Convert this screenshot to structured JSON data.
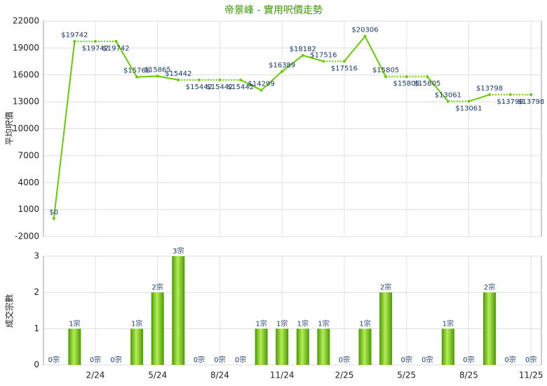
{
  "chart_data": [
    {
      "type": "line",
      "title": "帝景峰 - 實用呎價走勢",
      "y_label": "平均呎價",
      "color": "#66cc00",
      "values": [
        0,
        19742,
        19742,
        19742,
        15768,
        15865,
        15442,
        15442,
        15442,
        15442,
        14299,
        16389,
        18182,
        17516,
        17516,
        20306,
        15805,
        15805,
        15805,
        13061,
        13061,
        13798,
        13798,
        13798
      ],
      "value_labels": [
        "$0",
        "$19742",
        "$19742",
        "$19742",
        "$15768",
        "$15865",
        "$15442",
        "$15442",
        "$15442",
        "$15442",
        "$14299",
        "$16389",
        "$18182",
        "$17516",
        "$17516",
        "$20306",
        "$15805",
        "$15805",
        "$15805",
        "$13061",
        "$13061",
        "$13798",
        "$13798",
        "$13798"
      ],
      "ylim": [
        -2000,
        22000
      ],
      "yticks": [
        -2000,
        1000,
        4000,
        7000,
        10000,
        13000,
        16000,
        19000,
        22000
      ],
      "grid": true
    },
    {
      "type": "bar",
      "y_label": "成交宗數",
      "color": "#66bb11",
      "categories": [
        null,
        null,
        "2/24",
        null,
        null,
        "5/24",
        null,
        null,
        "8/24",
        null,
        null,
        "11/24",
        null,
        null,
        "2/25",
        null,
        null,
        "5/25",
        null,
        null,
        "8/25",
        null,
        null,
        "11/25"
      ],
      "values": [
        0,
        1,
        0,
        0,
        1,
        2,
        3,
        0,
        0,
        0,
        1,
        1,
        1,
        1,
        0,
        1,
        2,
        0,
        0,
        1,
        0,
        2,
        0,
        0
      ],
      "value_labels": [
        "0宗",
        "1宗",
        "0宗",
        "0宗",
        "1宗",
        "2宗",
        "3宗",
        "0宗",
        "0宗",
        "0宗",
        "1宗",
        "1宗",
        "1宗",
        "1宗",
        "0宗",
        "1宗",
        "2宗",
        "0宗",
        "0宗",
        "1宗",
        "0宗",
        "2宗",
        "0宗",
        "0宗"
      ],
      "ylim": [
        0,
        3
      ],
      "yticks": [
        0,
        1,
        2,
        3
      ],
      "grid": true
    }
  ]
}
